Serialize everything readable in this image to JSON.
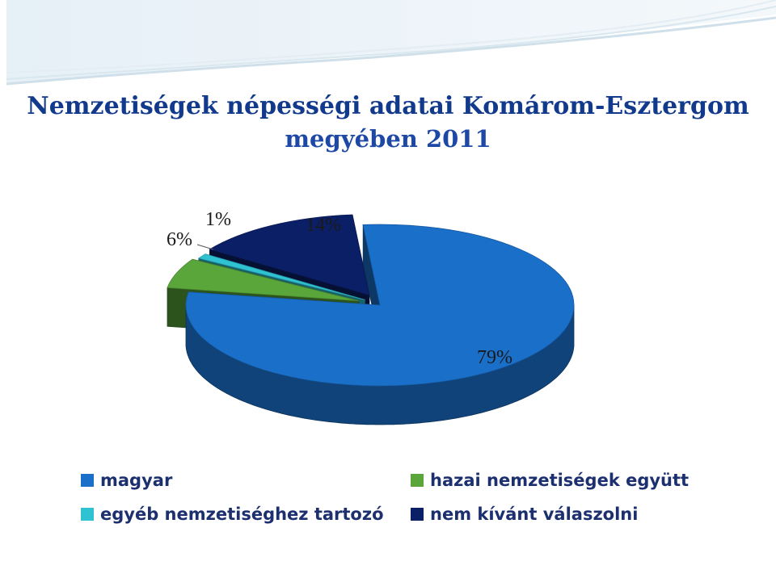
{
  "title": {
    "line1": "Nemzetiségek népességi adatai Komárom-Esztergom",
    "line2": "megyében 2011"
  },
  "chart_data": {
    "type": "pie",
    "style": "3d-exploded",
    "title": "Nemzetiségek népességi adatai Komárom-Esztergom megyében 2011",
    "slices": [
      {
        "label": "magyar",
        "value": 79,
        "value_label": "79%",
        "color": "#1a6fc9"
      },
      {
        "label": "hazai nemzetiségek együtt",
        "value": 6,
        "value_label": "6%",
        "color": "#5aa63a"
      },
      {
        "label": "egyéb nemzetiséghez tartozó",
        "value": 1,
        "value_label": "1%",
        "color": "#2fc2d2"
      },
      {
        "label": "nem kívánt válaszolni",
        "value": 14,
        "value_label": "14%",
        "color": "#0b1f66"
      }
    ],
    "legend_position": "bottom",
    "legend_order": [
      "magyar",
      "hazai nemzetiségek együtt",
      "egyéb nemzetiséghez tartozó",
      "nem kívánt válaszolni"
    ]
  }
}
